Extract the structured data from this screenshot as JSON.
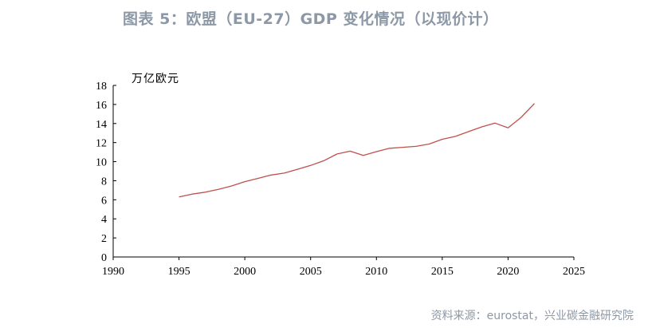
{
  "title": "图表 5：欧盟（EU-27）GDP 变化情况（以现价计）",
  "source": "资料来源：eurostat，兴业碳金融研究院",
  "chart_data": {
    "type": "line",
    "ylabel": "万亿欧元",
    "xlim": [
      1990,
      2025
    ],
    "ylim": [
      0,
      18
    ],
    "x_ticks": [
      1990,
      1995,
      2000,
      2005,
      2010,
      2015,
      2020,
      2025
    ],
    "y_ticks": [
      0,
      2,
      4,
      6,
      8,
      10,
      12,
      14,
      16,
      18
    ],
    "line_color": "#c0504d",
    "grid": false,
    "series": [
      {
        "x": [
          1995,
          1996,
          1997,
          1998,
          1999,
          2000,
          2001,
          2002,
          2003,
          2004,
          2005,
          2006,
          2007,
          2008,
          2009,
          2010,
          2011,
          2012,
          2013,
          2014,
          2015,
          2016,
          2017,
          2018,
          2019,
          2020,
          2021,
          2022
        ],
        "values": [
          6.3,
          6.6,
          6.8,
          7.1,
          7.45,
          7.9,
          8.25,
          8.6,
          8.8,
          9.2,
          9.6,
          10.1,
          10.8,
          11.1,
          10.65,
          11.05,
          11.4,
          11.5,
          11.6,
          11.85,
          12.35,
          12.65,
          13.15,
          13.65,
          14.05,
          13.55,
          14.65,
          16.1
        ]
      }
    ]
  }
}
